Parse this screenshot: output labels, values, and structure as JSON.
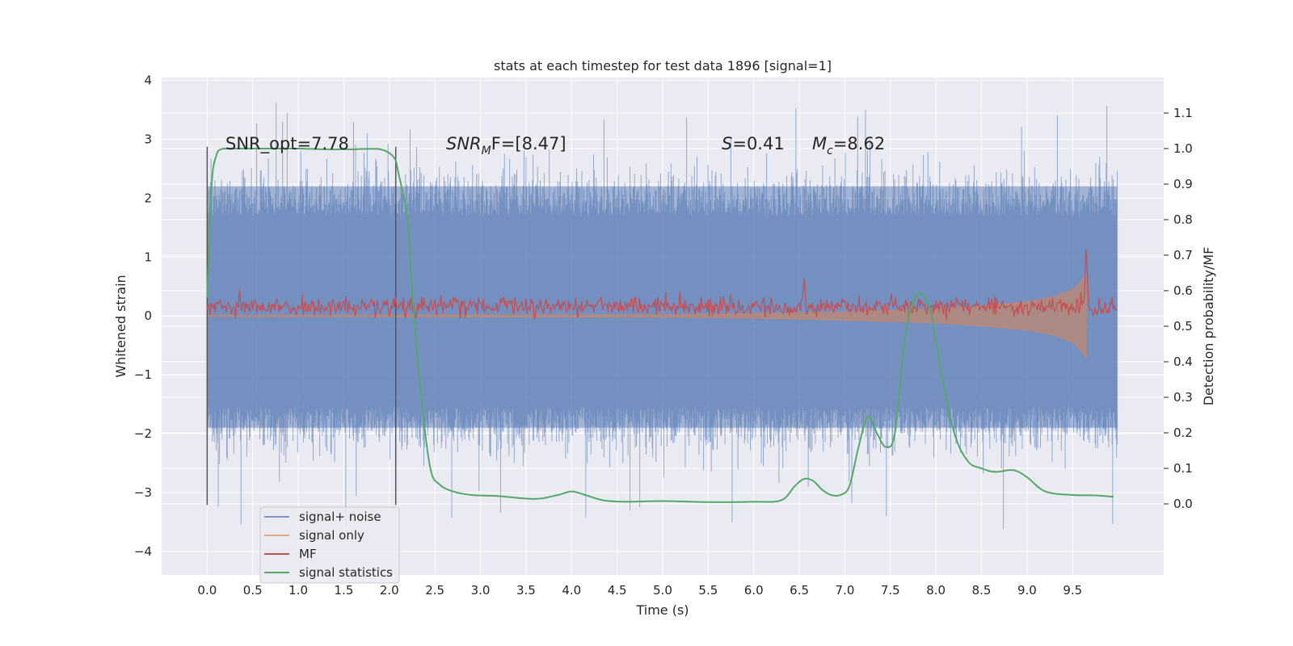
{
  "chart_data": {
    "type": "line",
    "title": "stats at each timestep for test data 1896 [signal=1]",
    "xlabel": "Time (s)",
    "ylabel": "Whitened strain",
    "ylabel_right": "Detection probability/MF",
    "xlim": [
      -0.5,
      10.5
    ],
    "ylim": [
      -4.4,
      4.05
    ],
    "ylim_right": [
      -0.2,
      1.2
    ],
    "x_ticks": [
      0.0,
      0.5,
      1.0,
      1.5,
      2.0,
      2.5,
      3.0,
      3.5,
      4.0,
      4.5,
      5.0,
      5.5,
      6.0,
      6.5,
      7.0,
      7.5,
      8.0,
      8.5,
      9.0,
      9.5
    ],
    "x_tick_labels": [
      "0.0",
      "0.5",
      "1.0",
      "1.5",
      "2.0",
      "2.5",
      "3.0",
      "3.5",
      "4.0",
      "4.5",
      "5.0",
      "5.5",
      "6.0",
      "6.5",
      "7.0",
      "7.5",
      "8.0",
      "8.5",
      "9.0",
      "9.5"
    ],
    "y_ticks": [
      -4,
      -3,
      -2,
      -1,
      0,
      1,
      2,
      3,
      4
    ],
    "y_tick_labels": [
      "−4",
      "−3",
      "−2",
      "−1",
      "0",
      "1",
      "2",
      "3",
      "4"
    ],
    "y_right_ticks": [
      0.0,
      0.1,
      0.2,
      0.3,
      0.4,
      0.5,
      0.6,
      0.7,
      0.8,
      0.9,
      1.0,
      1.1
    ],
    "y_right_tick_labels": [
      "0.0",
      "0.1",
      "0.2",
      "0.3",
      "0.4",
      "0.5",
      "0.6",
      "0.7",
      "0.8",
      "0.9",
      "1.0",
      "1.1"
    ],
    "grid": true,
    "legend_position": "lower-left",
    "colors": {
      "plot_bg": "#eaeaf2",
      "grid": "#ffffff",
      "noise": "#4c72b0",
      "signal": "#dd8452",
      "mf": "#c44e52",
      "stat": "#55a868",
      "vline": "#555555"
    },
    "series": [
      {
        "name": "signal+ noise",
        "axis": "left",
        "style": "dense noise band",
        "x_range": [
          0.0,
          9.99
        ],
        "typical_envelope": [
          -1.9,
          2.2
        ],
        "peak_max": 3.65,
        "peak_min": -3.65
      },
      {
        "name": "signal only",
        "axis": "left",
        "style": "chirp, amplitude growing with time, ending near 9.65 s",
        "x": [
          0.0,
          5.0,
          6.0,
          7.0,
          8.0,
          8.5,
          9.0,
          9.3,
          9.5,
          9.6,
          9.65
        ],
        "amplitude": [
          0.01,
          0.02,
          0.04,
          0.07,
          0.12,
          0.17,
          0.24,
          0.33,
          0.45,
          0.6,
          0.72
        ]
      },
      {
        "name": "MF",
        "axis": "right",
        "style": "dense noisy line with a spike at merger",
        "x_range": [
          0.0,
          9.99
        ],
        "baseline": 0.555,
        "band": [
          0.5,
          0.6
        ],
        "peaks": [
          {
            "x": 6.55,
            "y": 0.64
          },
          {
            "x": 9.65,
            "y": 0.72
          }
        ]
      },
      {
        "name": "signal statistics",
        "axis": "right",
        "x": [
          0.0,
          0.05,
          0.1,
          0.15,
          0.25,
          0.5,
          0.8,
          1.0,
          1.3,
          1.6,
          1.9,
          2.05,
          2.1,
          2.2,
          2.25,
          2.35,
          2.45,
          2.55,
          2.7,
          2.9,
          3.2,
          3.6,
          3.85,
          4.0,
          4.15,
          4.35,
          4.6,
          5.0,
          5.5,
          6.0,
          6.3,
          6.45,
          6.55,
          6.65,
          6.75,
          6.85,
          6.95,
          7.05,
          7.15,
          7.25,
          7.35,
          7.45,
          7.55,
          7.65,
          7.75,
          7.85,
          7.95,
          8.05,
          8.2,
          8.35,
          8.5,
          8.65,
          8.85,
          9.0,
          9.2,
          9.5,
          9.75,
          9.95
        ],
        "y": [
          0.58,
          0.9,
          0.98,
          0.998,
          1.0,
          1.0,
          1.0,
          1.0,
          0.998,
          0.998,
          0.998,
          0.975,
          0.93,
          0.8,
          0.6,
          0.3,
          0.1,
          0.055,
          0.035,
          0.025,
          0.022,
          0.014,
          0.025,
          0.035,
          0.025,
          0.01,
          0.006,
          0.008,
          0.005,
          0.006,
          0.01,
          0.05,
          0.07,
          0.065,
          0.04,
          0.025,
          0.025,
          0.05,
          0.16,
          0.245,
          0.2,
          0.16,
          0.2,
          0.45,
          0.57,
          0.59,
          0.53,
          0.38,
          0.2,
          0.12,
          0.1,
          0.09,
          0.095,
          0.075,
          0.035,
          0.025,
          0.024,
          0.02
        ]
      }
    ],
    "vertical_lines": [
      0.0,
      2.07
    ],
    "annotations": [
      {
        "text": "SNR_opt=7.78",
        "x": 0.2,
        "y": 2.9
      },
      {
        "text_main": "SNR",
        "text_sub": "M",
        "text_rest": "F=[8.47]",
        "x": 2.6,
        "y": 2.9
      },
      {
        "text_main": "S",
        "text_rest": "=0.41",
        "x": 5.6,
        "y": 2.9
      },
      {
        "text_main": "M",
        "text_sub": "c",
        "text_rest": "=8.62",
        "x": 6.6,
        "y": 2.9
      }
    ]
  }
}
